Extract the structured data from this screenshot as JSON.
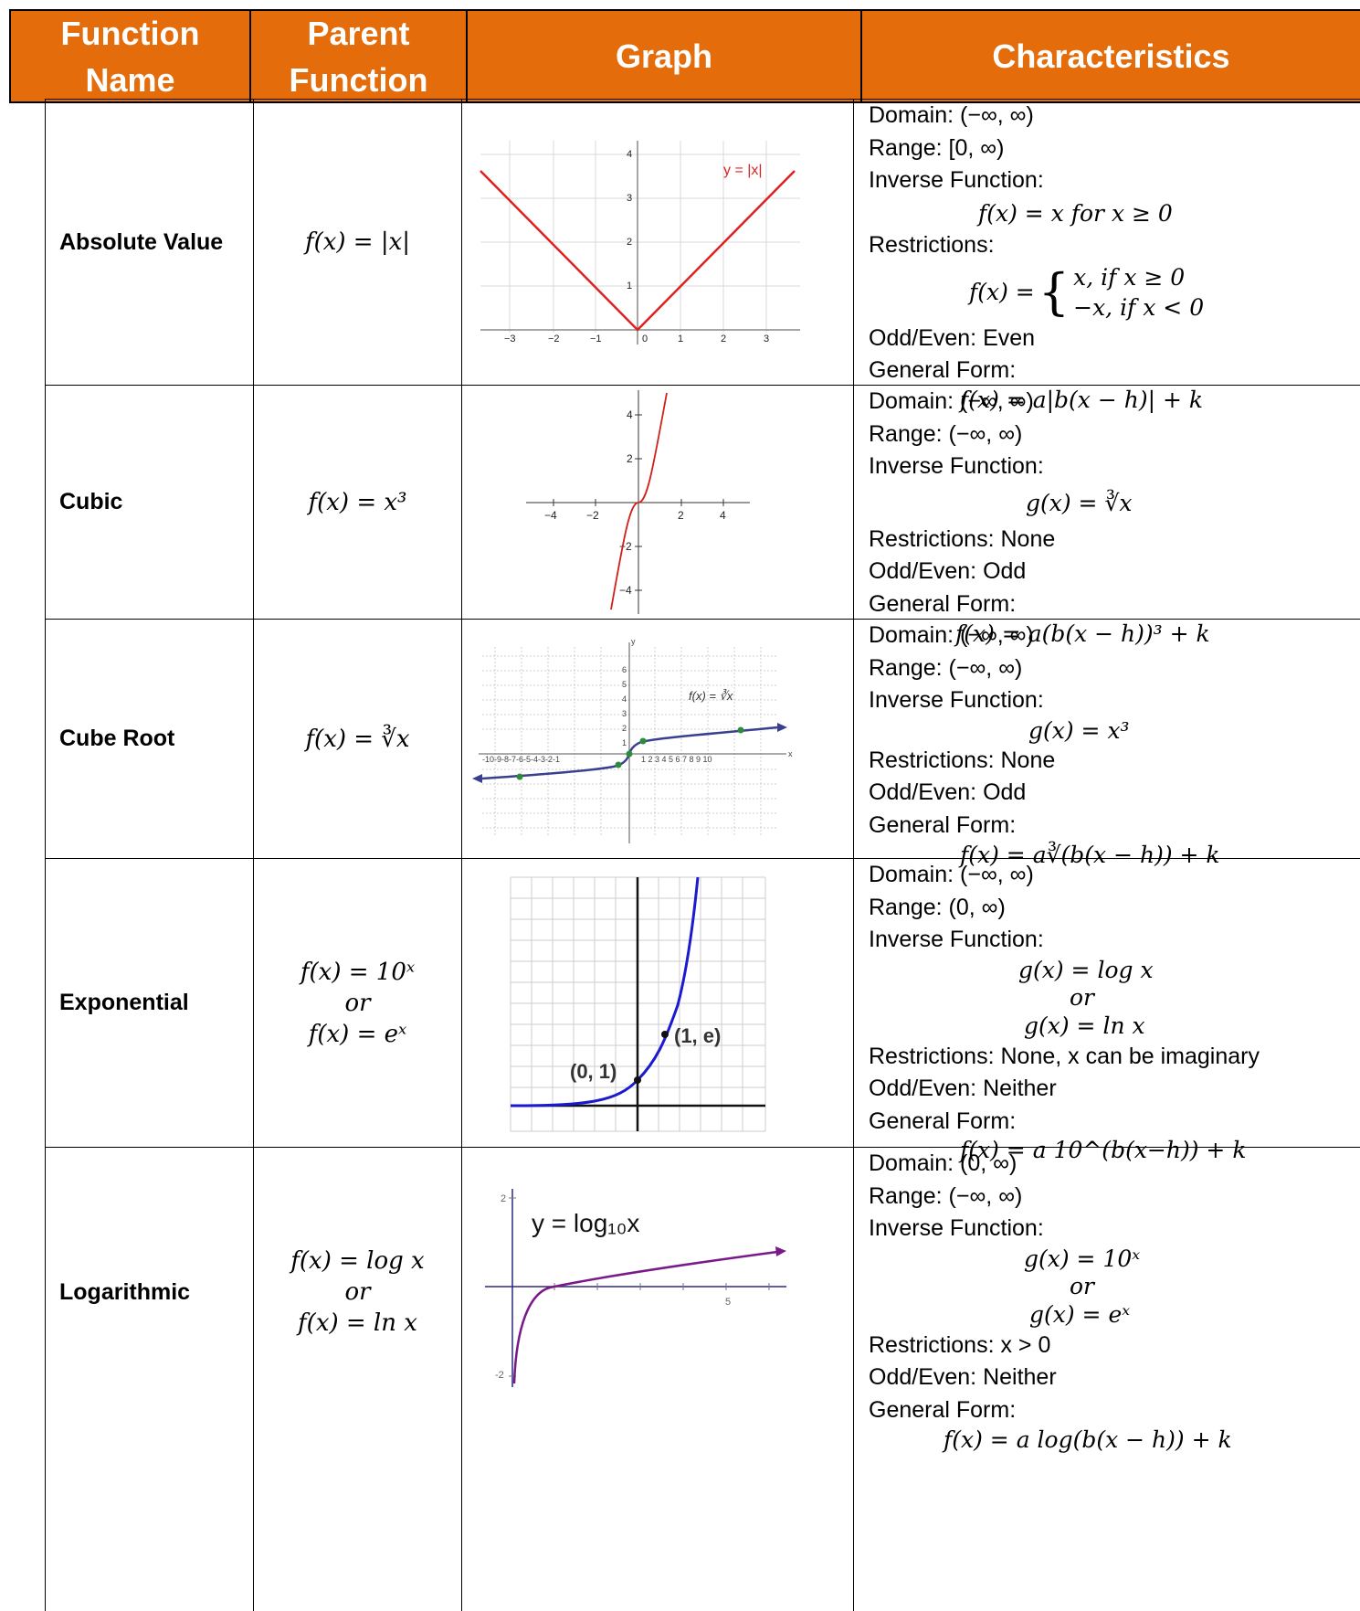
{
  "header": {
    "function_name_1": "Function",
    "function_name_2": "Name",
    "parent_function_1": "Parent",
    "parent_function_2": "Function",
    "graph": "Graph",
    "characteristics": "Characteristics"
  },
  "colors": {
    "header_bg": "#e46c0a",
    "abs_curve": "#e02020",
    "cubic_curve": "#d0201a",
    "root_curve": "#3a3f8f",
    "exp_curve": "#1a1ad0",
    "log_curve": "#7a1a8a",
    "point_green": "#2e8b3a"
  },
  "rows": [
    {
      "name": "Absolute Value",
      "parent": [
        "f(x) = |x|"
      ],
      "graph_label": "y = |x|",
      "chars": {
        "domain": "Domain: (−∞, ∞)",
        "range": "Range: [0, ∞)",
        "inverse_label": "Inverse Function:",
        "inverse": "f(x) = x for x ≥ 0",
        "restrictions": "Restrictions:",
        "piece_prefix": "f(x) =",
        "piece_1": "x,  if x ≥ 0",
        "piece_2": "−x,  if x < 0",
        "odd_even": "Odd/Even: Even",
        "general_label": "General Form:",
        "general": "f(x) = a|b(x − h)| + k"
      }
    },
    {
      "name": "Cubic",
      "parent": [
        "f(x) = x³"
      ],
      "chars": {
        "domain": "Domain: (−∞, ∞)",
        "range": "Range: (−∞, ∞)",
        "inverse_label": "Inverse Function:",
        "inverse": "g(x) = ∛x",
        "restrictions": "Restrictions: None",
        "odd_even": "Odd/Even: Odd",
        "general_label": "General Form:",
        "general": "f(x) = a(b(x − h))³ + k"
      }
    },
    {
      "name": "Cube Root",
      "parent": [
        "f(x) = ∛x"
      ],
      "graph_label": "f(x) = ∛x",
      "chars": {
        "domain": "Domain: (−∞, ∞)",
        "range": "Range: (−∞, ∞)",
        "inverse_label": "Inverse Function:",
        "inverse": "g(x) = x³",
        "restrictions": "Restrictions: None",
        "odd_even": "Odd/Even: Odd",
        "general_label": "General Form:",
        "general": "f(x) = a∛(b(x − h)) + k"
      }
    },
    {
      "name": "Exponential",
      "parent": [
        "f(x) = 10ˣ",
        "or",
        "f(x) = eˣ"
      ],
      "graph_points": [
        "(0, 1)",
        "(1, e)"
      ],
      "chars": {
        "domain": "Domain: (−∞, ∞)",
        "range": "Range: (0, ∞)",
        "inverse_label": "Inverse Function:",
        "inverse_1": "g(x) = log x",
        "or": "or",
        "inverse_2": "g(x) = ln x",
        "restrictions": "Restrictions: None, x can be imaginary",
        "odd_even": "Odd/Even: Neither",
        "general_label": "General Form:",
        "general": "f(x) = a 10^(b(x−h)) + k"
      }
    },
    {
      "name": "Logarithmic",
      "parent": [
        "f(x) = log x",
        "or",
        "f(x) = ln x"
      ],
      "graph_label": "y = log₁₀x",
      "chars": {
        "domain": "Domain: (0, ∞)",
        "range": "Range: (−∞, ∞)",
        "inverse_label": "Inverse Function:",
        "inverse_1": "g(x) = 10ˣ",
        "or": "or",
        "inverse_2": "g(x) = eˣ",
        "restrictions": "Restrictions: x > 0",
        "odd_even": "Odd/Even: Neither",
        "general_label": "General Form:",
        "general": "f(x) = a log(b(x − h)) + k"
      }
    }
  ]
}
